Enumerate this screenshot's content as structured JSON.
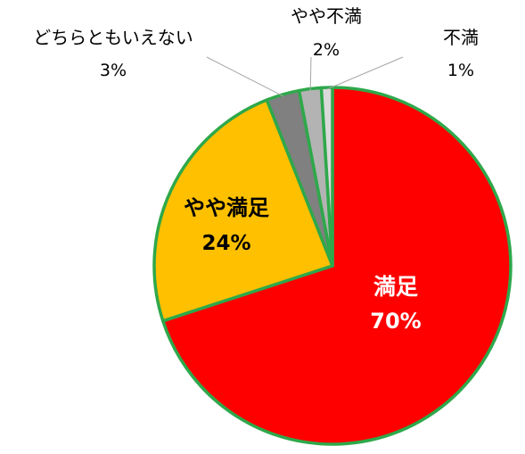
{
  "chart_data": {
    "type": "pie",
    "slices": [
      {
        "label": "満足",
        "value": 70,
        "value_label": "70%",
        "color": "#ff0000",
        "label_color": "#ffffff"
      },
      {
        "label": "やや満足",
        "value": 24,
        "value_label": "24%",
        "color": "#ffc000",
        "label_color": "#000000"
      },
      {
        "label": "どちらともいえない",
        "value": 3,
        "value_label": "3%",
        "color": "#808080",
        "label_color": "#000000"
      },
      {
        "label": "やや不満",
        "value": 2,
        "value_label": "2%",
        "color": "#b3b3b3",
        "label_color": "#000000"
      },
      {
        "label": "不満",
        "value": 1,
        "value_label": "1%",
        "color": "#d9d9d9",
        "label_color": "#000000"
      }
    ],
    "border_color": "#2ea84a",
    "legend": "none",
    "start_angle": "top",
    "direction": "clockwise"
  }
}
